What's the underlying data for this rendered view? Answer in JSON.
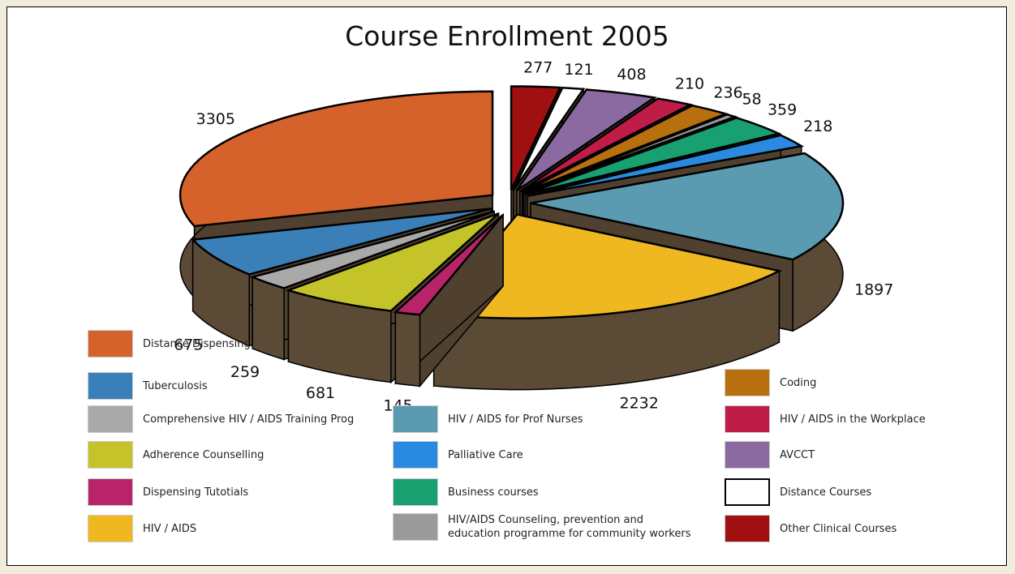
{
  "chart_data": {
    "type": "pie",
    "title": "Course Enrollment  2005",
    "categories": [
      "Distance Dispensing",
      "Tuberculosis",
      "Comprehensive HIV / AIDS Training Prog",
      "Adherence Counselling",
      "Dispensing Tutotials",
      "HIV / AIDS",
      "HIV / AIDS for Prof Nurses",
      "Palliative Care",
      "Business courses",
      "HIV/AIDS Counseling, prevention and\neducation programme for community workers",
      "Coding",
      "HIV / AIDS in the Workplace",
      "AVCCT",
      "Distance  Courses",
      "Other Clinical Courses"
    ],
    "values": [
      3305,
      675,
      259,
      681,
      145,
      2232,
      1897,
      218,
      359,
      58,
      236,
      210,
      408,
      121,
      277
    ],
    "colors": [
      "#d4622a",
      "#3a7fb8",
      "#a9a9a9",
      "#c4c42a",
      "#b8236a",
      "#f0b820",
      "#5b9bb1",
      "#2a8ae0",
      "#18a070",
      "#9a9a9a",
      "#b8700f",
      "#c01c48",
      "#8a6aa0",
      "#ffffff",
      "#a01010"
    ]
  }
}
